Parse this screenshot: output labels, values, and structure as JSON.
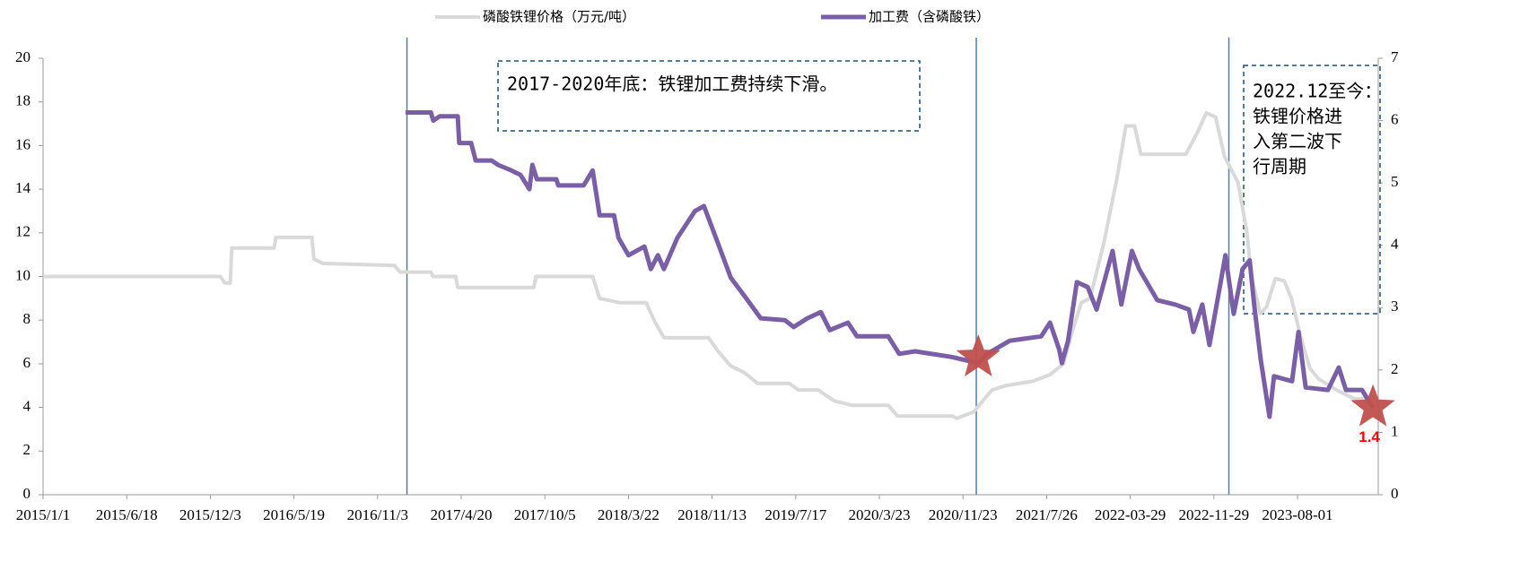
{
  "chart_data": {
    "type": "line",
    "xticks": [
      {
        "value": "2015-01-01",
        "label": "2015/1/1"
      },
      {
        "value": "2015-06-18",
        "label": "2015/6/18"
      },
      {
        "value": "2015-12-03",
        "label": "2015/12/3"
      },
      {
        "value": "2016-05-19",
        "label": "2016/5/19"
      },
      {
        "value": "2016-11-03",
        "label": "2016/11/3"
      },
      {
        "value": "2017-04-20",
        "label": "2017/4/20"
      },
      {
        "value": "2017-10-05",
        "label": "2017/10/5"
      },
      {
        "value": "2018-03-22",
        "label": "2018/3/22"
      },
      {
        "value": "2018-11-13",
        "label": "2018/11/13"
      },
      {
        "value": "2019-07-17",
        "label": "2019/7/17"
      },
      {
        "value": "2020-03-23",
        "label": "2020/3/23"
      },
      {
        "value": "2020-11-23",
        "label": "2020/11/23"
      },
      {
        "value": "2021-07-26",
        "label": "2021/7/26"
      },
      {
        "value": "2022-03-29",
        "label": "2022-03-29"
      },
      {
        "value": "2022-11-29",
        "label": "2022-11-29"
      },
      {
        "value": "2023-08-01",
        "label": "2023-08-01"
      }
    ],
    "xlim": [
      "2015-01-01",
      "2024-03-25"
    ],
    "ylim": [
      0,
      20
    ],
    "yticks": [
      0,
      2,
      4,
      6,
      8,
      10,
      12,
      14,
      16,
      18,
      20
    ],
    "y2lim": [
      0,
      7
    ],
    "y2ticks": [
      0,
      1,
      2,
      3,
      4,
      5,
      6,
      7
    ],
    "series": [
      {
        "name": "磷酸铁锂价格（万元/吨）",
        "color": "#d9d9d9",
        "axis": "y",
        "x": [
          "2015-01-01",
          "2015-12-23",
          "2016-01-01",
          "2016-01-12",
          "2016-01-15",
          "2016-04-09",
          "2016-04-13",
          "2016-06-24",
          "2016-06-28",
          "2016-07-16",
          "2016-12-07",
          "2016-12-18",
          "2017-02-18",
          "2017-02-22",
          "2017-04-09",
          "2017-04-13",
          "2017-09-13",
          "2017-09-17",
          "2018-01-09",
          "2018-01-23",
          "2018-03-04",
          "2018-05-11",
          "2018-06-05",
          "2018-06-30",
          "2018-11-03",
          "2018-11-29",
          "2019-01-07",
          "2019-02-15",
          "2019-03-27",
          "2019-06-28",
          "2019-07-25",
          "2019-09-22",
          "2019-11-09",
          "2020-01-02",
          "2020-04-18",
          "2020-05-15",
          "2020-10-23",
          "2020-11-05",
          "2020-12-25",
          "2021-01-20",
          "2021-02-16",
          "2021-03-28",
          "2021-06-15",
          "2021-08-05",
          "2021-09-14",
          "2021-10-10",
          "2021-11-05",
          "2021-12-01",
          "2022-01-10",
          "2022-02-18",
          "2022-03-16",
          "2022-04-11",
          "2022-04-29",
          "2022-09-08",
          "2022-10-12",
          "2022-11-07",
          "2022-12-04",
          "2022-12-30",
          "2023-02-08",
          "2023-03-06",
          "2023-03-19",
          "2023-04-14",
          "2023-05-02",
          "2023-05-28",
          "2023-06-23",
          "2023-07-14",
          "2023-08-11",
          "2023-09-06",
          "2023-10-02",
          "2023-11-23",
          "2024-01-14",
          "2024-02-22"
        ],
        "values": [
          10,
          10,
          9.7,
          9.7,
          11.3,
          11.3,
          11.8,
          11.8,
          10.8,
          10.6,
          10.5,
          10.2,
          10.2,
          10.0,
          10.0,
          9.5,
          9.5,
          10.0,
          10.0,
          9.0,
          8.8,
          8.8,
          7.9,
          7.2,
          7.2,
          6.6,
          5.9,
          5.6,
          5.1,
          5.1,
          4.8,
          4.8,
          4.3,
          4.1,
          4.1,
          3.6,
          3.6,
          3.5,
          3.8,
          4.3,
          4.8,
          5.0,
          5.2,
          5.5,
          6.0,
          7.5,
          8.8,
          9.0,
          11.5,
          14.5,
          16.9,
          16.9,
          15.6,
          15.6,
          16.6,
          17.5,
          17.3,
          15.5,
          14.3,
          12.0,
          10.0,
          8.3,
          8.6,
          9.9,
          9.8,
          9.0,
          7.2,
          5.8,
          5.3,
          4.8,
          4.4,
          4.4
        ]
      },
      {
        "name": "加工费（含磷酸铁）",
        "color": "#7b5fa6",
        "axis": "y2",
        "x": [
          "2016-12-29",
          "2017-02-18",
          "2017-02-23",
          "2017-03-08",
          "2017-04-13",
          "2017-04-16",
          "2017-05-10",
          "2017-05-19",
          "2017-06-20",
          "2017-07-03",
          "2017-07-30",
          "2017-08-17",
          "2017-09-04",
          "2017-09-10",
          "2017-09-19",
          "2017-10-28",
          "2017-11-01",
          "2017-12-22",
          "2018-01-09",
          "2018-01-23",
          "2018-02-21",
          "2018-03-02",
          "2018-03-22",
          "2018-05-06",
          "2018-05-24",
          "2018-06-13",
          "2018-06-30",
          "2018-08-07",
          "2018-09-26",
          "2018-10-21",
          "2018-11-29",
          "2019-01-07",
          "2019-02-16",
          "2019-04-05",
          "2019-06-15",
          "2019-07-11",
          "2019-08-21",
          "2019-09-30",
          "2019-10-27",
          "2019-12-20",
          "2020-01-16",
          "2020-04-18",
          "2020-05-20",
          "2020-07-06",
          "2020-10-19",
          "2021-01-07",
          "2021-02-02",
          "2021-04-09",
          "2021-07-10",
          "2021-08-05",
          "2021-09-01",
          "2021-09-09",
          "2021-09-27",
          "2021-10-23",
          "2021-11-24",
          "2021-12-20",
          "2022-02-05",
          "2022-03-03",
          "2022-04-03",
          "2022-04-24",
          "2022-06-16",
          "2022-08-08",
          "2022-09-17",
          "2022-09-30",
          "2022-10-26",
          "2022-11-16",
          "2023-01-02",
          "2023-01-26",
          "2023-02-21",
          "2023-03-14",
          "2023-03-27",
          "2023-04-15",
          "2023-05-11",
          "2023-05-24",
          "2023-07-16",
          "2023-08-04",
          "2023-08-25",
          "2023-10-29",
          "2023-11-30",
          "2023-12-21",
          "2024-02-06",
          "2024-03-09"
        ],
        "values": [
          6.13,
          6.13,
          6.0,
          6.07,
          6.07,
          5.64,
          5.64,
          5.36,
          5.36,
          5.29,
          5.2,
          5.13,
          4.9,
          5.29,
          5.06,
          5.06,
          4.96,
          4.96,
          5.2,
          4.48,
          4.48,
          4.12,
          3.84,
          3.98,
          3.62,
          3.84,
          3.62,
          4.12,
          4.55,
          4.63,
          4.05,
          3.48,
          3.19,
          2.83,
          2.8,
          2.69,
          2.83,
          2.93,
          2.64,
          2.76,
          2.54,
          2.54,
          2.26,
          2.3,
          2.21,
          2.11,
          2.26,
          2.47,
          2.54,
          2.76,
          2.33,
          2.11,
          2.47,
          3.41,
          3.33,
          2.97,
          3.91,
          3.05,
          3.91,
          3.62,
          3.12,
          3.05,
          2.97,
          2.61,
          3.05,
          2.4,
          3.84,
          2.9,
          3.62,
          3.76,
          3.05,
          2.18,
          1.25,
          1.9,
          1.82,
          2.61,
          1.72,
          1.68,
          2.04,
          1.68,
          1.68,
          1.39
        ]
      }
    ],
    "vlines": [
      "2017-01-01",
      "2021-01-01",
      "2023-01-12"
    ],
    "markers": [
      {
        "x": "2021-01-07",
        "value": 2.2
      },
      {
        "x": "2024-03-09",
        "value": 1.4
      }
    ],
    "annotations": [
      {
        "lines": [
          "2017-2020年底：铁锂加工费持续下滑。"
        ]
      },
      {
        "lines": [
          "2022.12至今：",
          "铁锂价格进",
          "入第二波下",
          "行周期"
        ]
      }
    ]
  }
}
